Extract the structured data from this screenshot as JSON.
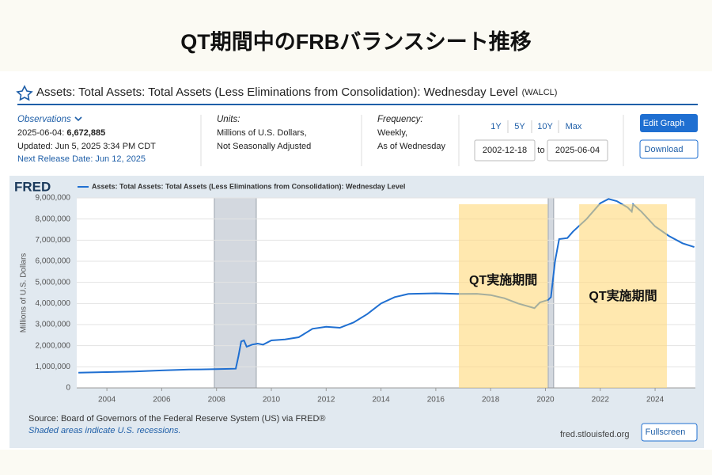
{
  "page": {
    "title": "QT期間中のFRBバランスシート推移",
    "series_title": "Assets: Total Assets: Total Assets (Less Eliminations from Consolidation): Wednesday Level",
    "series_id": "(WALCL)",
    "observations": {
      "label": "Observations",
      "date": "2025-06-04:",
      "value": "6,672,885",
      "updated": "Updated: Jun 5, 2025 3:34 PM CDT",
      "next_release": "Next Release Date: Jun 12, 2025"
    },
    "units": {
      "label": "Units:",
      "lines": [
        "Millions of U.S. Dollars,",
        "Not Seasonally Adjusted"
      ]
    },
    "frequency": {
      "label": "Frequency:",
      "lines": [
        "Weekly,",
        "As of Wednesday"
      ]
    },
    "ranges": [
      "1Y",
      "5Y",
      "10Y",
      "Max"
    ],
    "start": "2002-12-18",
    "to": "to",
    "end": "2025-06-04",
    "edit": "Edit Graph",
    "download": "Download",
    "source": "Source: Board of Governors of the Federal Reserve System (US) via FRED®",
    "note": "Shaded areas indicate U.S. recessions.",
    "site": "fred.stlouisfed.org",
    "fullscreen": "Fullscreen"
  },
  "chart_data": {
    "type": "line",
    "logo": "FRED",
    "ylabel": "Millions of U.S. Dollars",
    "series": [
      {
        "name": "Assets: Total Assets: Total Assets (Less Eliminations from Consolidation): Wednesday Level",
        "color": "#1f6fd1",
        "x": [
          2002.96,
          2004,
          2005,
          2006,
          2007,
          2008,
          2008.7,
          2008.8,
          2008.9,
          2009,
          2009.1,
          2009.3,
          2009.5,
          2009.7,
          2010,
          2010.5,
          2011,
          2011.5,
          2012,
          2012.5,
          2013,
          2013.5,
          2014,
          2014.5,
          2015,
          2016,
          2016.8,
          2017.5,
          2018,
          2018.5,
          2019,
          2019.6,
          2019.8,
          2020.1,
          2020.2,
          2020.35,
          2020.5,
          2020.8,
          2021,
          2021.5,
          2022,
          2022.3,
          2022.6,
          2023,
          2023.15,
          2023.2,
          2023.5,
          2024,
          2024.5,
          2025,
          2025.43
        ],
        "values": [
          720000,
          750000,
          780000,
          830000,
          870000,
          890000,
          910000,
          1500000,
          2200000,
          2250000,
          1950000,
          2050000,
          2100000,
          2050000,
          2250000,
          2300000,
          2400000,
          2800000,
          2900000,
          2850000,
          3100000,
          3500000,
          4000000,
          4300000,
          4450000,
          4480000,
          4450000,
          4460000,
          4400000,
          4250000,
          4000000,
          3780000,
          4050000,
          4170000,
          4300000,
          6000000,
          7050000,
          7100000,
          7400000,
          8000000,
          8750000,
          8950000,
          8850000,
          8550000,
          8350000,
          8700000,
          8350000,
          7650000,
          7200000,
          6850000,
          6672885
        ]
      }
    ],
    "xlim": [
      2002.9,
      2025.47
    ],
    "xticks": [
      2004,
      2006,
      2008,
      2010,
      2012,
      2014,
      2016,
      2018,
      2020,
      2022,
      2024
    ],
    "ylim": [
      0,
      9000000
    ],
    "yticks": [
      0,
      {
        "value": 1000000,
        "label": "1,000,000"
      },
      {
        "value": 2000000,
        "label": "2,000,000"
      },
      {
        "value": 3000000,
        "label": "3,000,000"
      },
      {
        "value": 4000000,
        "label": "4,000,000"
      },
      {
        "value": 5000000,
        "label": "5,000,000"
      },
      {
        "value": 6000000,
        "label": "6,000,000"
      },
      {
        "value": 7000000,
        "label": "7,000,000"
      },
      {
        "value": 8000000,
        "label": "8,000,000"
      },
      {
        "value": 9000000,
        "label": "9,000,000"
      }
    ],
    "grid": true,
    "recessions": [
      {
        "x": [
          2007.92,
          2009.45
        ],
        "color": "#d3d8df"
      },
      {
        "x": [
          2020.1,
          2020.3
        ],
        "color": "#d3d8df"
      }
    ],
    "highlights": [
      {
        "label": "QT実施期間",
        "x": [
          2016.84,
          2020.08
        ],
        "color": "#ffd97a"
      },
      {
        "label": "QT実施期間",
        "x": [
          2021.23,
          2024.43
        ],
        "color": "#ffd97a"
      }
    ]
  }
}
